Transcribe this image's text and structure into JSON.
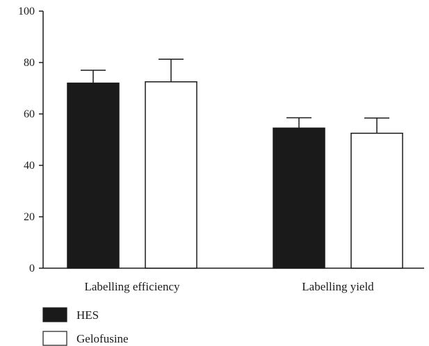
{
  "chart_data": {
    "type": "bar",
    "categories": [
      "Labelling efficiency",
      "Labelling yield"
    ],
    "series": [
      {
        "name": "HES",
        "values": [
          72,
          54.5
        ],
        "errors": [
          5,
          4
        ],
        "fill": "#1a1a1a"
      },
      {
        "name": "Gelofusine",
        "values": [
          72.5,
          52.5
        ],
        "errors": [
          8.8,
          5.9
        ],
        "fill": "#ffffff"
      }
    ],
    "ylim": [
      0,
      100
    ],
    "yticks": [
      0,
      20,
      40,
      60,
      80,
      100
    ],
    "ytick_labels": [
      "0",
      "20",
      "40",
      "60",
      "80",
      "100"
    ],
    "legend_position": "bottom-left",
    "grid": false,
    "stroke_color": "#1a1a1a"
  }
}
